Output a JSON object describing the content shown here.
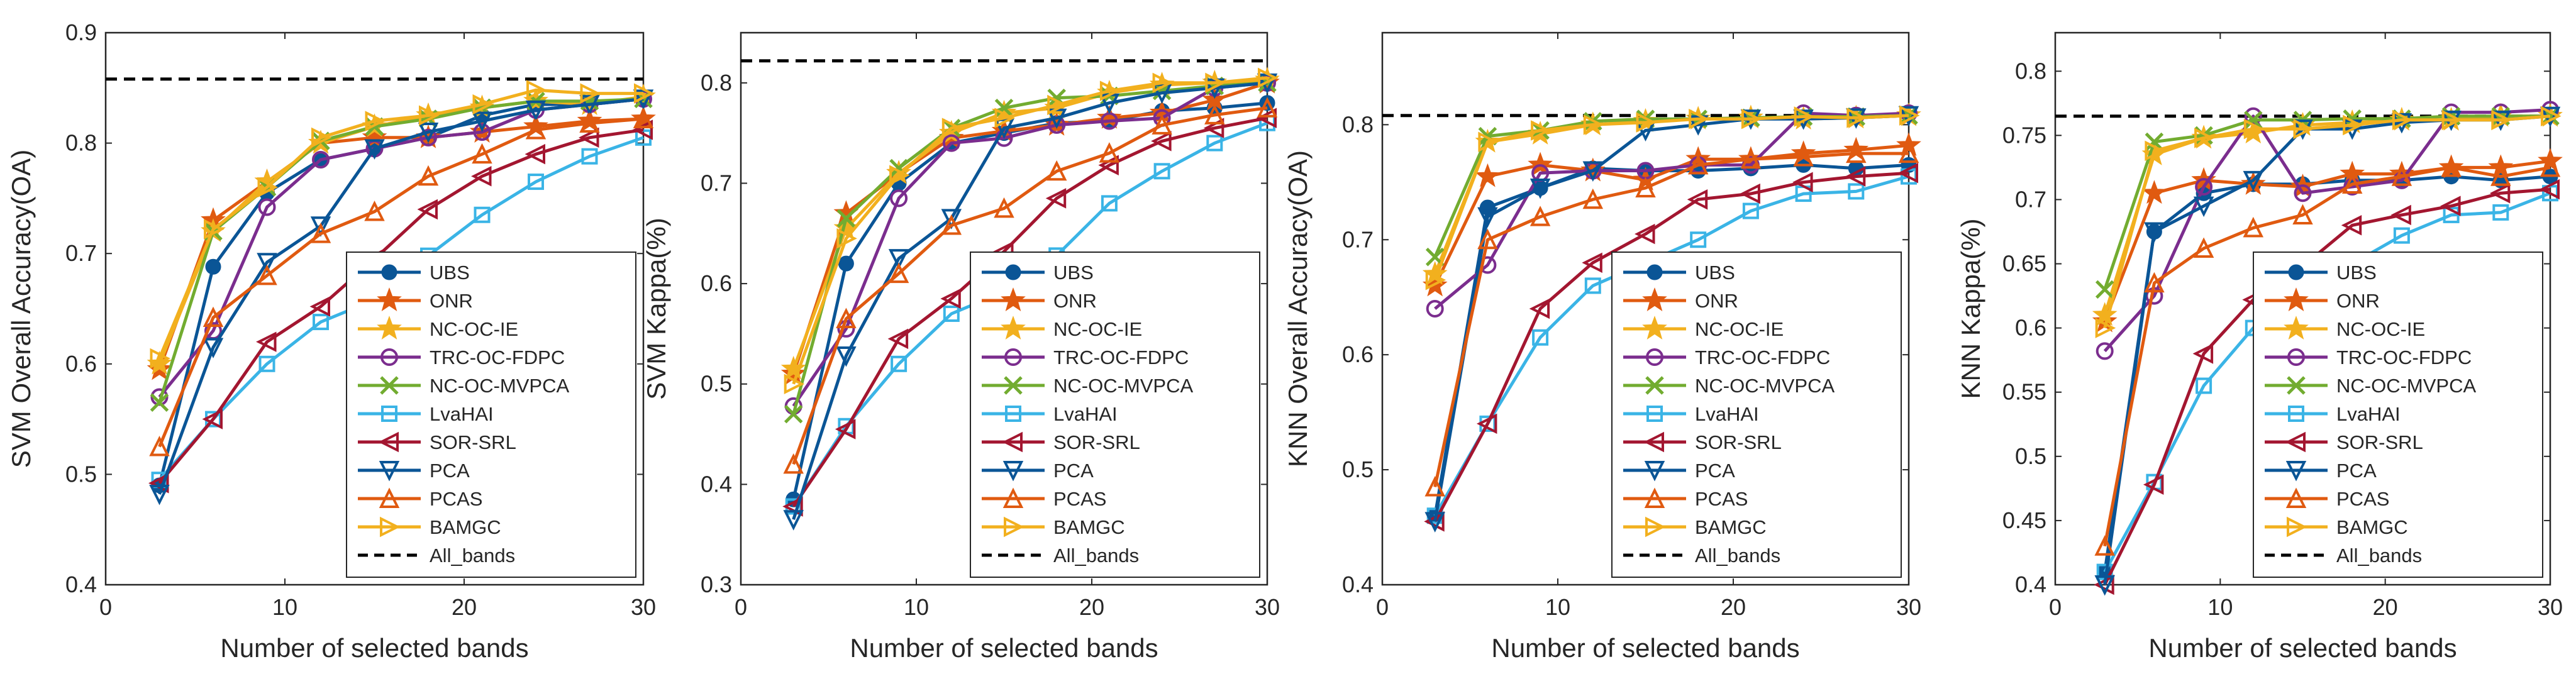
{
  "legend_style": {
    "UBS": {
      "color": "#0a5596",
      "marker": "circle-filled"
    },
    "ONR": {
      "color": "#e05a10",
      "marker": "star"
    },
    "NC-OC-IE": {
      "color": "#f2b01e",
      "marker": "star"
    },
    "TRC-OC-FDPC": {
      "color": "#7b2d8e",
      "marker": "circle-open"
    },
    "NC-OC-MVPCA": {
      "color": "#72ac30",
      "marker": "x"
    },
    "LvaHAI": {
      "color": "#3ab4e6",
      "marker": "square-open"
    },
    "SOR-SRL": {
      "color": "#a31630",
      "marker": "triangle-left"
    },
    "PCA": {
      "color": "#0a5596",
      "marker": "triangle-down"
    },
    "PCAS": {
      "color": "#e05a10",
      "marker": "triangle-up"
    },
    "BAMGC": {
      "color": "#f2b01e",
      "marker": "triangle-right"
    },
    "All_bands": {
      "color": "#000000",
      "marker": "dashed-line"
    }
  },
  "chart_data": [
    {
      "type": "line",
      "title": "",
      "xlabel": "Number of selected bands",
      "ylabel": "SVM Overall Accuracy(OA)",
      "xlim": [
        0,
        30
      ],
      "ylim": [
        0.4,
        0.9
      ],
      "xticks": [
        0,
        10,
        20,
        30
      ],
      "yticks": [
        0.4,
        0.5,
        0.6,
        0.7,
        0.8,
        0.9
      ],
      "legend_position": "bottom-right",
      "x": [
        3,
        6,
        9,
        12,
        15,
        18,
        21,
        24,
        27,
        30
      ],
      "baseline": {
        "name": "All_bands",
        "value": 0.858
      },
      "series": [
        {
          "name": "UBS",
          "values": [
            0.49,
            0.688,
            0.755,
            0.785,
            0.795,
            0.805,
            0.825,
            0.835,
            0.835,
            0.84
          ]
        },
        {
          "name": "ONR",
          "values": [
            0.595,
            0.73,
            0.765,
            0.8,
            0.805,
            0.805,
            0.81,
            0.815,
            0.82,
            0.822
          ]
        },
        {
          "name": "NC-OC-IE",
          "values": [
            0.6,
            0.72,
            0.765,
            0.8,
            0.815,
            0.825,
            0.832,
            0.838,
            0.835,
            0.842
          ]
        },
        {
          "name": "TRC-OC-FDPC",
          "values": [
            0.57,
            0.63,
            0.742,
            0.785,
            0.795,
            0.805,
            0.81,
            0.83,
            0.835,
            0.84
          ]
        },
        {
          "name": "NC-OC-MVPCA",
          "values": [
            0.565,
            0.72,
            0.76,
            0.802,
            0.815,
            0.822,
            0.832,
            0.838,
            0.838,
            0.84
          ]
        },
        {
          "name": "LvaHAI",
          "values": [
            0.495,
            0.55,
            0.6,
            0.638,
            0.658,
            0.698,
            0.735,
            0.765,
            0.788,
            0.805
          ]
        },
        {
          "name": "SOR-SRL",
          "values": [
            0.492,
            0.55,
            0.62,
            0.652,
            0.695,
            0.74,
            0.77,
            0.79,
            0.805,
            0.812
          ]
        },
        {
          "name": "PCA",
          "values": [
            0.482,
            0.615,
            0.692,
            0.725,
            0.795,
            0.81,
            0.82,
            0.83,
            0.835,
            0.84
          ]
        },
        {
          "name": "PCAS",
          "values": [
            0.525,
            0.642,
            0.68,
            0.718,
            0.738,
            0.77,
            0.79,
            0.812,
            0.818,
            0.822
          ]
        },
        {
          "name": "BAMGC",
          "values": [
            0.605,
            0.722,
            0.76,
            0.805,
            0.82,
            0.825,
            0.835,
            0.848,
            0.845,
            0.845
          ]
        }
      ]
    },
    {
      "type": "line",
      "title": "",
      "xlabel": "Number of selected bands",
      "ylabel": "SVM Kappa(%)",
      "xlim": [
        0,
        30
      ],
      "ylim": [
        0.3,
        0.85
      ],
      "xticks": [
        0,
        10,
        20,
        30
      ],
      "yticks": [
        0.3,
        0.4,
        0.5,
        0.6,
        0.7,
        0.8
      ],
      "legend_position": "bottom-right",
      "x": [
        3,
        6,
        9,
        12,
        15,
        18,
        21,
        24,
        27,
        30
      ],
      "baseline": {
        "name": "All_bands",
        "value": 0.822
      },
      "series": [
        {
          "name": "UBS",
          "values": [
            0.385,
            0.62,
            0.7,
            0.74,
            0.75,
            0.76,
            0.762,
            0.772,
            0.775,
            0.78
          ]
        },
        {
          "name": "ONR",
          "values": [
            0.51,
            0.67,
            0.71,
            0.745,
            0.752,
            0.758,
            0.765,
            0.77,
            0.783,
            0.8
          ]
        },
        {
          "name": "NC-OC-IE",
          "values": [
            0.515,
            0.655,
            0.71,
            0.75,
            0.77,
            0.775,
            0.79,
            0.798,
            0.8,
            0.803
          ]
        },
        {
          "name": "TRC-OC-FDPC",
          "values": [
            0.478,
            0.555,
            0.685,
            0.74,
            0.745,
            0.758,
            0.762,
            0.765,
            0.795,
            0.8
          ]
        },
        {
          "name": "NC-OC-MVPCA",
          "values": [
            0.47,
            0.665,
            0.715,
            0.755,
            0.775,
            0.785,
            0.787,
            0.792,
            0.797,
            0.8
          ]
        },
        {
          "name": "LvaHAI",
          "values": [
            0.378,
            0.458,
            0.52,
            0.57,
            0.592,
            0.628,
            0.68,
            0.712,
            0.74,
            0.76
          ]
        },
        {
          "name": "SOR-SRL",
          "values": [
            0.378,
            0.455,
            0.545,
            0.585,
            0.632,
            0.685,
            0.718,
            0.742,
            0.755,
            0.765
          ]
        },
        {
          "name": "PCA",
          "values": [
            0.365,
            0.528,
            0.625,
            0.665,
            0.755,
            0.765,
            0.78,
            0.79,
            0.795,
            0.8
          ]
        },
        {
          "name": "PCAS",
          "values": [
            0.42,
            0.565,
            0.61,
            0.658,
            0.675,
            0.712,
            0.73,
            0.758,
            0.768,
            0.775
          ]
        },
        {
          "name": "BAMGC",
          "values": [
            0.5,
            0.645,
            0.708,
            0.755,
            0.765,
            0.778,
            0.792,
            0.8,
            0.8,
            0.805
          ]
        }
      ]
    },
    {
      "type": "line",
      "title": "",
      "xlabel": "Number of selected bands",
      "ylabel": "KNN Overall Accuracy(OA)",
      "xlim": [
        0,
        30
      ],
      "ylim": [
        0.4,
        0.88
      ],
      "xticks": [
        0,
        10,
        20,
        30
      ],
      "yticks": [
        0.4,
        0.5,
        0.6,
        0.7,
        0.8
      ],
      "legend_position": "bottom-right",
      "x": [
        3,
        6,
        9,
        12,
        15,
        18,
        21,
        24,
        27,
        30
      ],
      "baseline": {
        "name": "All_bands",
        "value": 0.808
      },
      "series": [
        {
          "name": "UBS",
          "values": [
            0.46,
            0.728,
            0.745,
            0.762,
            0.76,
            0.76,
            0.762,
            0.765,
            0.762,
            0.765
          ]
        },
        {
          "name": "ONR",
          "values": [
            0.66,
            0.755,
            0.765,
            0.76,
            0.752,
            0.77,
            0.77,
            0.775,
            0.778,
            0.782
          ]
        },
        {
          "name": "NC-OC-IE",
          "values": [
            0.67,
            0.785,
            0.792,
            0.8,
            0.803,
            0.805,
            0.806,
            0.805,
            0.806,
            0.808
          ]
        },
        {
          "name": "TRC-OC-FDPC",
          "values": [
            0.64,
            0.678,
            0.758,
            0.76,
            0.76,
            0.765,
            0.765,
            0.81,
            0.808,
            0.81
          ]
        },
        {
          "name": "NC-OC-MVPCA",
          "values": [
            0.685,
            0.79,
            0.795,
            0.803,
            0.805,
            0.805,
            0.806,
            0.807,
            0.807,
            0.808
          ]
        },
        {
          "name": "LvaHAI",
          "values": [
            0.46,
            0.54,
            0.615,
            0.66,
            0.68,
            0.7,
            0.725,
            0.74,
            0.742,
            0.755
          ]
        },
        {
          "name": "SOR-SRL",
          "values": [
            0.455,
            0.54,
            0.64,
            0.68,
            0.705,
            0.735,
            0.74,
            0.75,
            0.755,
            0.758
          ]
        },
        {
          "name": "PCA",
          "values": [
            0.455,
            0.72,
            0.745,
            0.76,
            0.795,
            0.8,
            0.805,
            0.805,
            0.806,
            0.808
          ]
        },
        {
          "name": "PCAS",
          "values": [
            0.485,
            0.7,
            0.72,
            0.735,
            0.745,
            0.765,
            0.77,
            0.772,
            0.775,
            0.775
          ]
        },
        {
          "name": "BAMGC",
          "values": [
            0.665,
            0.785,
            0.795,
            0.8,
            0.802,
            0.805,
            0.805,
            0.807,
            0.806,
            0.808
          ]
        }
      ]
    },
    {
      "type": "line",
      "title": "",
      "xlabel": "Number of selected bands",
      "ylabel": "KNN Kappa(%)",
      "xlim": [
        0,
        30
      ],
      "ylim": [
        0.4,
        0.83
      ],
      "xticks": [
        0,
        10,
        20,
        30
      ],
      "yticks": [
        0.4,
        0.45,
        0.5,
        0.55,
        0.6,
        0.65,
        0.7,
        0.75,
        0.8
      ],
      "legend_position": "bottom-right",
      "x": [
        3,
        6,
        9,
        12,
        15,
        18,
        21,
        24,
        27,
        30
      ],
      "baseline": {
        "name": "All_bands",
        "value": 0.765
      },
      "series": [
        {
          "name": "UBS",
          "values": [
            0.41,
            0.675,
            0.705,
            0.712,
            0.712,
            0.715,
            0.715,
            0.718,
            0.715,
            0.718
          ]
        },
        {
          "name": "ONR",
          "values": [
            0.605,
            0.705,
            0.715,
            0.712,
            0.71,
            0.72,
            0.72,
            0.725,
            0.725,
            0.73
          ]
        },
        {
          "name": "NC-OC-IE",
          "values": [
            0.61,
            0.735,
            0.748,
            0.752,
            0.758,
            0.76,
            0.762,
            0.762,
            0.765,
            0.765
          ]
        },
        {
          "name": "TRC-OC-FDPC",
          "values": [
            0.582,
            0.625,
            0.71,
            0.765,
            0.705,
            0.71,
            0.715,
            0.768,
            0.768,
            0.77
          ]
        },
        {
          "name": "NC-OC-MVPCA",
          "values": [
            0.63,
            0.745,
            0.75,
            0.762,
            0.762,
            0.763,
            0.763,
            0.765,
            0.765,
            0.765
          ]
        },
        {
          "name": "LvaHAI",
          "values": [
            0.41,
            0.48,
            0.555,
            0.6,
            0.625,
            0.65,
            0.672,
            0.688,
            0.69,
            0.705
          ]
        },
        {
          "name": "SOR-SRL",
          "values": [
            0.4,
            0.478,
            0.58,
            0.622,
            0.648,
            0.68,
            0.688,
            0.695,
            0.705,
            0.708
          ]
        },
        {
          "name": "PCA",
          "values": [
            0.4,
            0.675,
            0.695,
            0.715,
            0.755,
            0.755,
            0.76,
            0.762,
            0.762,
            0.765
          ]
        },
        {
          "name": "PCAS",
          "values": [
            0.43,
            0.635,
            0.662,
            0.678,
            0.688,
            0.712,
            0.718,
            0.725,
            0.718,
            0.725
          ]
        },
        {
          "name": "BAMGC",
          "values": [
            0.6,
            0.738,
            0.748,
            0.755,
            0.755,
            0.758,
            0.762,
            0.762,
            0.762,
            0.765
          ]
        }
      ]
    }
  ]
}
